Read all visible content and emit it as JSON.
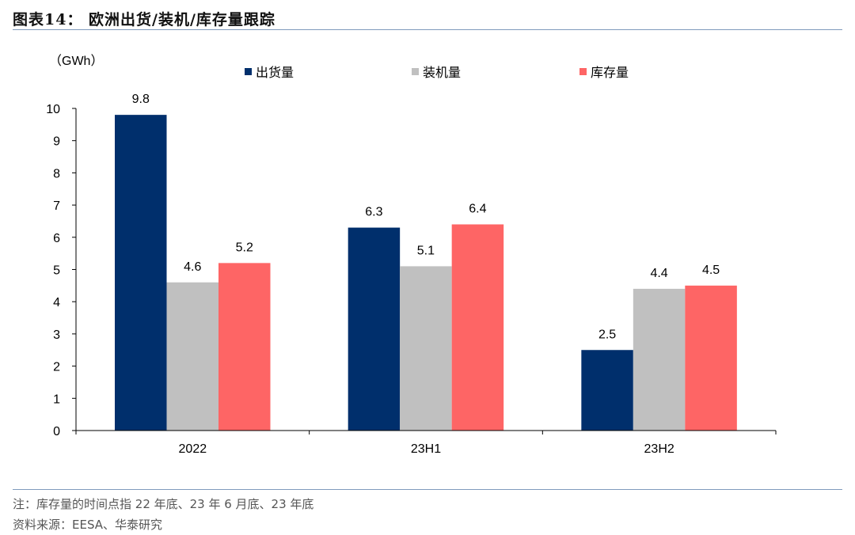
{
  "header": {
    "title": "图表14：  欧洲出货/装机/库存量跟踪"
  },
  "chart_data": {
    "type": "bar",
    "ylabel": "（GWh）",
    "categories": [
      "2022",
      "23H1",
      "23H2"
    ],
    "ylim": [
      0,
      10
    ],
    "yticks": [
      0,
      1,
      2,
      3,
      4,
      5,
      6,
      7,
      8,
      9,
      10
    ],
    "legend_position": "top",
    "grid": false,
    "series": [
      {
        "name": "出货量",
        "color": "#002f6c",
        "values": [
          9.8,
          6.3,
          2.5
        ]
      },
      {
        "name": "装机量",
        "color": "#c0c0c0",
        "values": [
          4.6,
          5.1,
          4.4
        ]
      },
      {
        "name": "库存量",
        "color": "#fe6565",
        "values": [
          5.2,
          6.4,
          4.5
        ]
      }
    ]
  },
  "footer": {
    "note": "注：库存量的时间点指 22 年底、23 年 6 月底、23 年底",
    "source": "资料来源：EESA、华泰研究"
  }
}
